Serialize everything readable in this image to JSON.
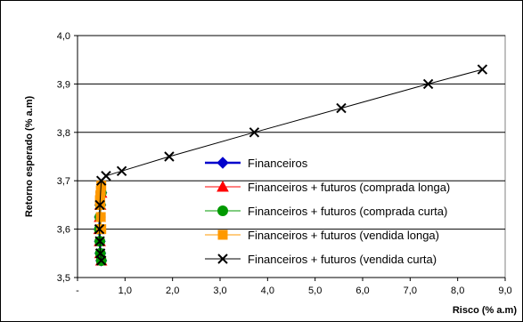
{
  "chart_data": {
    "type": "scatter",
    "xlabel": "Risco (% a.m)",
    "ylabel": "Retorno esperado (% a.m)",
    "xlim": [
      0,
      9
    ],
    "ylim": [
      3.5,
      4.0
    ],
    "x_tick_labels": [
      "-",
      "1,0",
      "2,0",
      "3,0",
      "4,0",
      "5,0",
      "6,0",
      "7,0",
      "8,0",
      "9,0"
    ],
    "y_tick_labels": [
      "3,5",
      "3,6",
      "3,7",
      "3,8",
      "3,9",
      "4,0"
    ],
    "x_ticks": [
      0,
      1,
      2,
      3,
      4,
      5,
      6,
      7,
      8,
      9
    ],
    "y_ticks": [
      3.5,
      3.6,
      3.7,
      3.8,
      3.9,
      4.0
    ],
    "grid": "horizontal",
    "legend_position": "right-middle",
    "series": [
      {
        "name": "Financeiros",
        "color": "#0000cc",
        "marker": "diamond",
        "line": true,
        "x": [
          0.5,
          0.48,
          0.47,
          0.46,
          0.47,
          0.48,
          0.5
        ],
        "y": [
          3.535,
          3.55,
          3.575,
          3.6,
          3.625,
          3.65,
          3.675
        ]
      },
      {
        "name": "Financeiros + futuros (comprada longa)",
        "color": "#ff0000",
        "marker": "triangle",
        "line": true,
        "x": [
          0.5,
          0.48,
          0.47,
          0.46,
          0.47,
          0.48,
          0.5
        ],
        "y": [
          3.535,
          3.55,
          3.575,
          3.6,
          3.625,
          3.65,
          3.675
        ]
      },
      {
        "name": "Financeiros + futuros (comprada curta)",
        "color": "#009900",
        "marker": "circle",
        "line": true,
        "x": [
          0.5,
          0.48,
          0.47,
          0.46,
          0.47,
          0.48,
          0.5
        ],
        "y": [
          3.535,
          3.55,
          3.575,
          3.6,
          3.625,
          3.65,
          3.675
        ]
      },
      {
        "name": "Financeiros + futuros (vendida longa)",
        "color": "#ff9900",
        "marker": "square",
        "line": true,
        "x": [
          0.5,
          0.49,
          0.48,
          0.47,
          0.48,
          0.49,
          0.5
        ],
        "y": [
          3.6,
          3.625,
          3.65,
          3.66,
          3.67,
          3.68,
          3.69
        ]
      },
      {
        "name": "Financeiros + futuros (vendida curta)",
        "color": "#000000",
        "marker": "x",
        "line": true,
        "x": [
          0.5,
          0.48,
          0.47,
          0.46,
          0.47,
          0.5,
          0.6,
          0.93,
          1.93,
          3.72,
          5.55,
          7.38,
          8.52
        ],
        "y": [
          3.535,
          3.55,
          3.575,
          3.6,
          3.65,
          3.7,
          3.71,
          3.72,
          3.75,
          3.8,
          3.85,
          3.9,
          3.93
        ]
      }
    ]
  }
}
